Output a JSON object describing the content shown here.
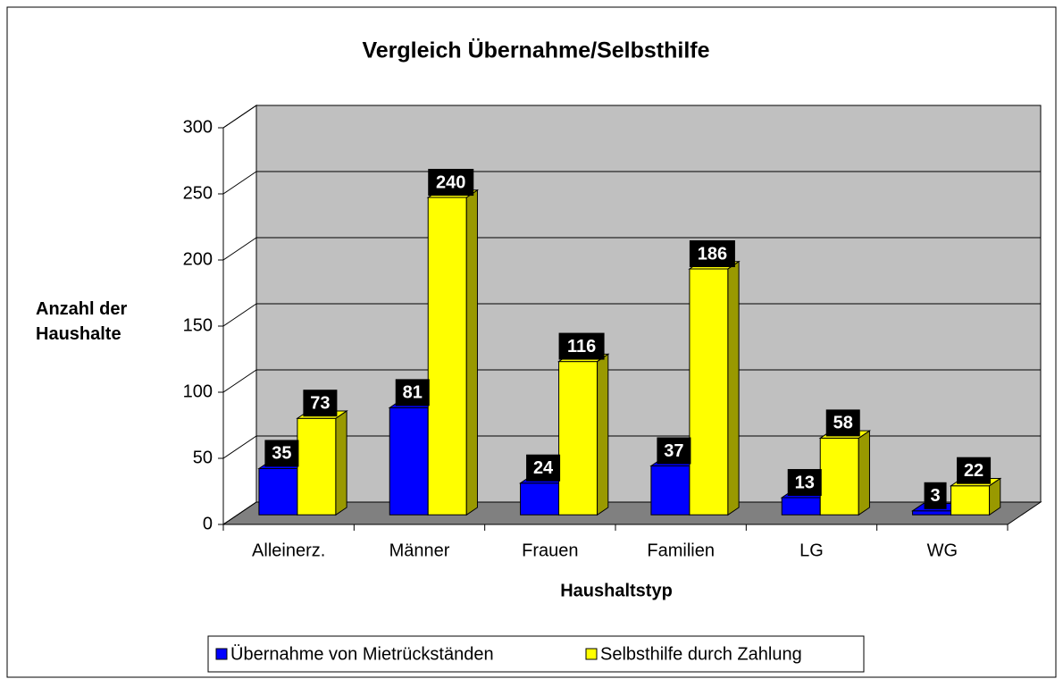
{
  "chart_data": {
    "type": "bar3d",
    "title": "Vergleich Übernahme/Selbsthilfe",
    "x_label": "Haushaltstyp",
    "y_label": "Anzahl der Haushalte",
    "categories": [
      "Alleinerz.",
      "Männer",
      "Frauen",
      "Familien",
      "LG",
      "WG"
    ],
    "series": [
      {
        "name": "Übernahme von Mietrückständen",
        "color": "#0000ff",
        "values": [
          35,
          81,
          24,
          37,
          13,
          3
        ]
      },
      {
        "name": "Selbsthilfe durch Zahlung",
        "color": "#ffff00",
        "values": [
          73,
          240,
          116,
          186,
          58,
          22
        ]
      }
    ],
    "ylim": [
      0,
      300
    ],
    "yticks": [
      0,
      50,
      100,
      150,
      200,
      250,
      300
    ],
    "grid": true,
    "legend": "bottom"
  }
}
